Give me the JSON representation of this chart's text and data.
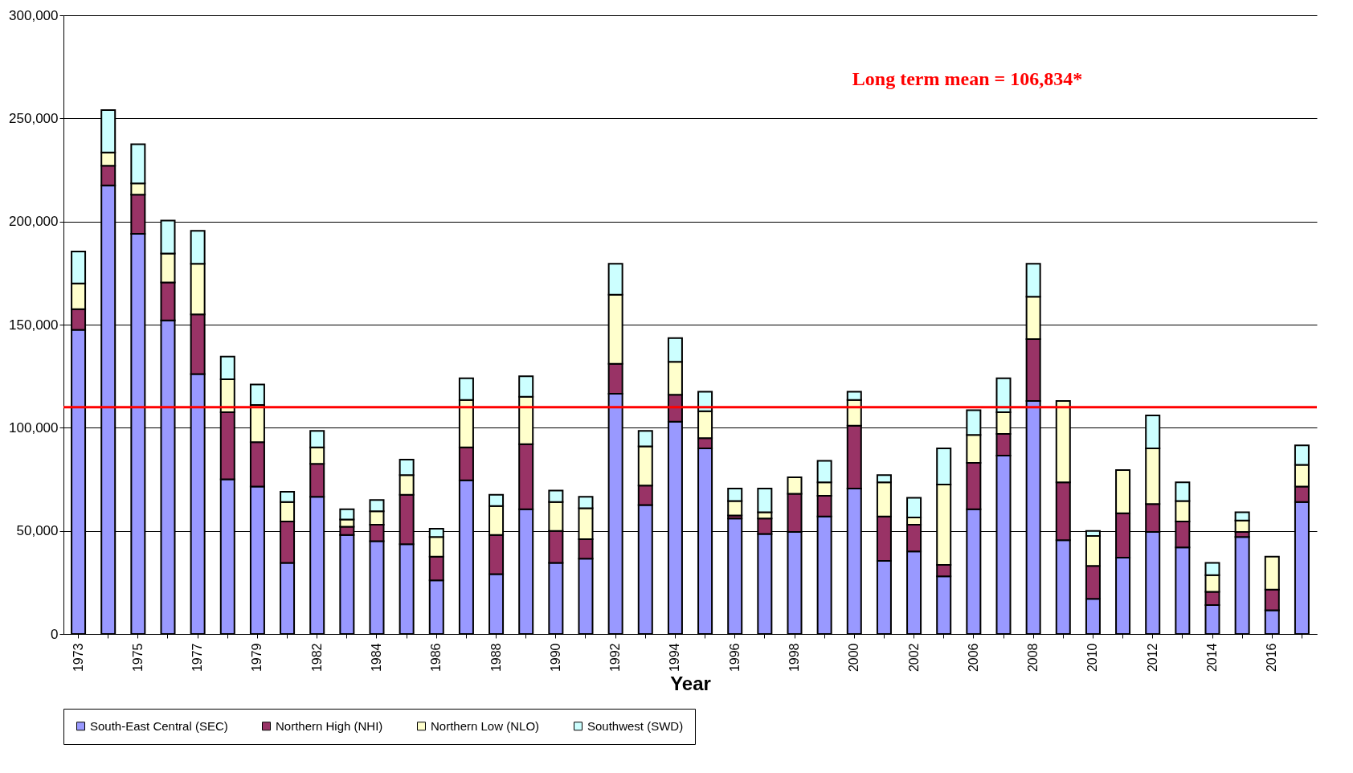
{
  "chart_data": {
    "type": "bar",
    "stacked": true,
    "xlabel": "Year",
    "categories": [
      "1973",
      null,
      "1975",
      null,
      "1977",
      null,
      "1979",
      null,
      "1982",
      null,
      "1984",
      null,
      "1986",
      null,
      "1988",
      null,
      "1990",
      null,
      "1992",
      null,
      "1994",
      null,
      "1996",
      null,
      "1998",
      null,
      "2000",
      null,
      "2002",
      null,
      "2006",
      null,
      "2008",
      null,
      "2010",
      null,
      "2012",
      null,
      "2014",
      null,
      "2016",
      null
    ],
    "series": [
      {
        "name": "South-East Central (SEC)",
        "color": "#9999ff",
        "values": [
          147500,
          217500,
          194000,
          152000,
          126000,
          75000,
          71500,
          34500,
          66500,
          48000,
          45000,
          43500,
          26000,
          74500,
          29000,
          60500,
          34500,
          36500,
          116500,
          62500,
          103000,
          90000,
          56000,
          48500,
          49500,
          57000,
          70500,
          35500,
          40000,
          28000,
          60500,
          86500,
          113000,
          45500,
          17000,
          37000,
          49500,
          42000,
          14000,
          47000,
          11500,
          64000
        ]
      },
      {
        "name": "Northern High (NHI)",
        "color": "#993366",
        "values": [
          10000,
          9500,
          19000,
          18500,
          29000,
          32500,
          21500,
          20000,
          16000,
          4000,
          8000,
          24000,
          11500,
          16000,
          19000,
          31500,
          15500,
          9500,
          14500,
          9500,
          13000,
          5000,
          1500,
          7500,
          18500,
          10000,
          30500,
          21500,
          13000,
          5500,
          22500,
          10500,
          30000,
          28000,
          16000,
          21500,
          13500,
          12500,
          6500,
          2500,
          10000,
          7500
        ]
      },
      {
        "name": "Northern Low (NLO)",
        "color": "#ffffcc",
        "values": [
          12500,
          6500,
          5500,
          14000,
          24500,
          16000,
          18000,
          9500,
          8000,
          3500,
          6500,
          9500,
          9500,
          23000,
          14000,
          23000,
          14000,
          15000,
          33500,
          19000,
          16000,
          13000,
          7000,
          3000,
          8000,
          6500,
          12500,
          16500,
          3500,
          39000,
          13500,
          10500,
          20500,
          39500,
          14500,
          21000,
          27000,
          10000,
          8000,
          5500,
          16000,
          10500
        ]
      },
      {
        "name": "Southwest (SWD)",
        "color": "#ccffff",
        "values": [
          15500,
          20500,
          19000,
          16000,
          16000,
          11000,
          10000,
          5000,
          8000,
          5000,
          5500,
          7500,
          4000,
          10500,
          5500,
          10000,
          5500,
          5500,
          15000,
          7500,
          11500,
          9500,
          6000,
          11500,
          0,
          10500,
          4000,
          3500,
          9500,
          17500,
          12000,
          16500,
          16000,
          0,
          2500,
          0,
          16000,
          9000,
          6000,
          4000,
          0,
          9500
        ]
      }
    ],
    "ylim": [
      0,
      300000
    ],
    "yticks": [
      0,
      {
        "value": 50000,
        "label": "50,000"
      },
      {
        "value": 100000,
        "label": "100,000"
      },
      {
        "value": 150000,
        "label": "150,000"
      },
      {
        "value": 200000,
        "label": "200,000"
      },
      {
        "value": 250000,
        "label": "250,000"
      },
      {
        "value": 300000,
        "label": "300,000"
      }
    ],
    "grid": "y",
    "legend": "bottom",
    "ref_lines": [
      {
        "axis": "y",
        "value": 110000,
        "color": "#ff0000"
      }
    ],
    "annotations": [
      "Long term mean = 106,834*"
    ]
  }
}
